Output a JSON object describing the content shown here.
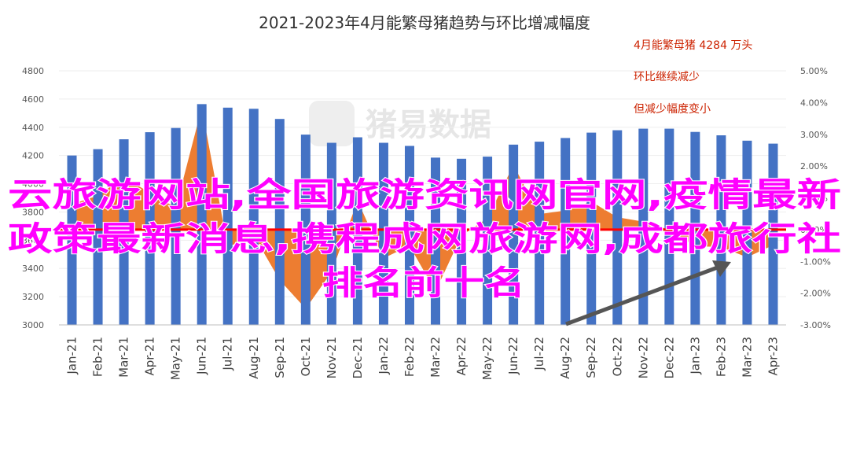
{
  "chart_data": {
    "type": "bar",
    "title": "2021-2023年4月能繁母猪趋势与环比增减幅度",
    "categories": [
      "Jan-21",
      "Feb-21",
      "Mar-21",
      "Apr-21",
      "May-21",
      "Jun-21",
      "Jul-21",
      "Aug-21",
      "Sep-21",
      "Oct-21",
      "Nov-21",
      "Dec-21",
      "Jan-22",
      "Feb-22",
      "Mar-22",
      "Apr-22",
      "May-22",
      "Jun-22",
      "Jul-22",
      "Aug-22",
      "Sep-22",
      "Oct-22",
      "Nov-22",
      "Dec-22",
      "Jan-23",
      "Feb-23",
      "Mar-23",
      "Apr-23"
    ],
    "series": [
      {
        "type": "bar",
        "axis": "left",
        "color": "#4472c4",
        "values": [
          4200,
          4245,
          4315,
          4365,
          4395,
          4564,
          4539,
          4531,
          4459,
          4348,
          4290,
          4329,
          4290,
          4268,
          4185,
          4177,
          4192,
          4277,
          4298,
          4324,
          4362,
          4379,
          4390,
          4390,
          4367,
          4343,
          4305,
          4284
        ]
      },
      {
        "type": "area",
        "axis": "right",
        "color": "#ed7d31",
        "values": [
          0.8,
          1.07,
          1.65,
          1.16,
          0.69,
          3.84,
          -0.55,
          -0.18,
          -1.59,
          -2.49,
          -1.33,
          0.91,
          -0.9,
          -0.51,
          -1.94,
          -0.19,
          0.36,
          2.03,
          0.49,
          0.6,
          0.88,
          0.39,
          0.25,
          0.0,
          -0.52,
          -0.55,
          -0.87,
          -0.49
        ]
      }
    ],
    "y_left": {
      "min": 3000,
      "max": 4800,
      "step": 200,
      "ticks": [
        "3000",
        "3200",
        "3400",
        "3600",
        "3800",
        "4000",
        "4200",
        "4400",
        "4600",
        "4800"
      ]
    },
    "y_right": {
      "min": -3.0,
      "max": 5.0,
      "step": 1.0,
      "ticks": [
        "-3.00%",
        "-2.00%",
        "-1.00%",
        "0.00%",
        "1.00%",
        "2.00%",
        "3.00%",
        "4.00%",
        "5.00%"
      ]
    },
    "annotations": [
      "4月能繁母猪 4284 万头",
      "环比继续减少",
      "但减少幅度变小"
    ],
    "watermark": "猪易数据",
    "overlay_lines": [
      "云旅游网站,全国旅游资讯网官网,疫情最新",
      "政策最新消息,携程成网旅游网,成都旅行社",
      "排名前十名"
    ],
    "colors": {
      "bars": "#4472c4",
      "area": "#ed7d31",
      "zero_line": "#ff0000",
      "annotation": "#cc2200",
      "overlay": "#ff00ff",
      "arrow": "#555555"
    }
  }
}
